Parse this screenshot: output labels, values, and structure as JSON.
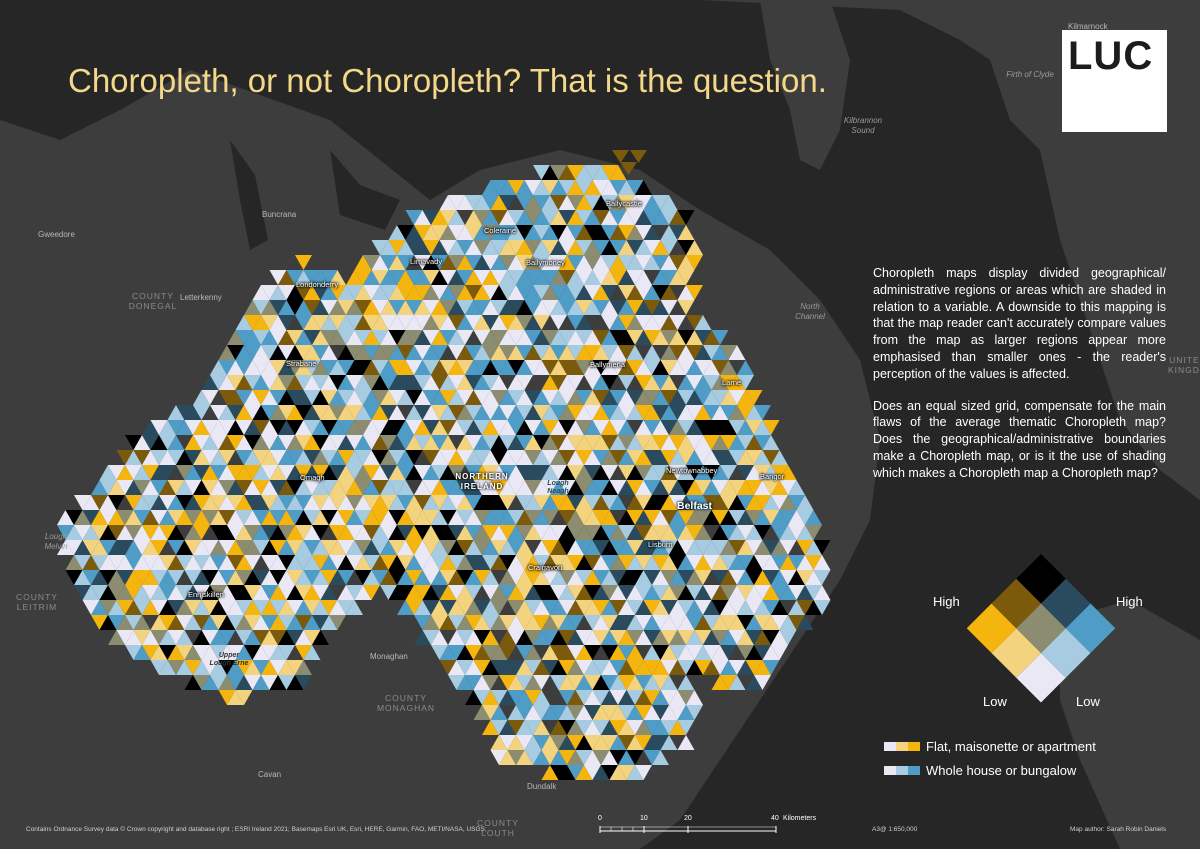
{
  "title": "Choropleth, or not Choropleth? That is the question.",
  "logo": "LUC",
  "description": [
    "Choropleth maps display divided geographical/ administrative regions or areas which are shaded in relation to a variable. A downside to this mapping is that the map reader can't accurately compare values from the map as larger regions appear more emphasised than smaller ones - the reader's perception of the values is affected.",
    "Does an equal sized grid, compensate for the main flaws of the average thematic Choropleth map? Does the geographical/administrative boundaries make a Choropleth map, or is it the use of shading which makes a Choropleth map a Choropleth map?"
  ],
  "labels": {
    "kilmarnock": "Kilmarnock",
    "firth_of_clyde": "Firth of Clyde",
    "kilbrannon_sound": "Kilbrannon Sound",
    "north_channel": "North Channel",
    "united_kingdom": "UNITED KINGDOM",
    "buncrana": "Buncrana",
    "gweedore": "Gweedore",
    "letterkenny": "Letterkenny",
    "county_donegal": "COUNTY DONEGAL",
    "county_leitrim": "COUNTY LEITRIM",
    "county_monaghan": "COUNTY MONAGHAN",
    "county_louth": "COUNTY LOUTH",
    "lough_melvin": "Lough Melvin",
    "monaghan": "Monaghan",
    "cavan": "Cavan",
    "dundalk": "Dundalk",
    "ballycastle": "Ballycastle",
    "coleraine": "Coleraine",
    "limavady": "Limavady",
    "ballymoney": "Ballymoney",
    "londonderry": "Londonderry",
    "strabane": "Strabane",
    "ballymena": "Ballymena",
    "larne": "Larne",
    "omagh": "Omagh",
    "northern_ireland": "NORTHERN IRELAND",
    "lough_neagh": "Lough Neagh",
    "newtownabbey": "Newtownabbey",
    "bangor": "Bangor",
    "belfast": "Belfast",
    "lisburn": "Lisburn",
    "craigavon": "Craigavon",
    "enniskillen": "Enniskillen",
    "upper_lough_erne": "Upper Lough Erne"
  },
  "legend": {
    "high_left": "High",
    "high_right": "High",
    "low_left": "Low",
    "low_right": "Low",
    "bivariate_colors": [
      [
        "#eae8f4",
        "#a7cbe0",
        "#4f9cc7"
      ],
      [
        "#f3d37e",
        "#8c8c70",
        "#2a4a5e"
      ],
      [
        "#f5b50f",
        "#7b5a0c",
        "#000000"
      ]
    ],
    "keys": [
      {
        "label": "Flat, maisonette or apartment",
        "colors": [
          "#eae8f4",
          "#f3d37e",
          "#f5b50f"
        ]
      },
      {
        "label": "Whole house or bungalow",
        "colors": [
          "#eae8f4",
          "#a7cbe0",
          "#4f9cc7"
        ]
      }
    ]
  },
  "scale_bar": {
    "ticks": [
      "0",
      "10",
      "20",
      "40"
    ],
    "unit": "Kilometers"
  },
  "footer": {
    "attribution": "Contains Ordnance Survey data © Crown copyright and database right ; ESRI Ireland 2021; Basemaps Esri UK, Esri, HERE, Garmin, FAO, METI/NASA, USGS;",
    "scale_text": "A3@ 1:650,000",
    "author": "Map author: Sarah Robin Daniels"
  }
}
